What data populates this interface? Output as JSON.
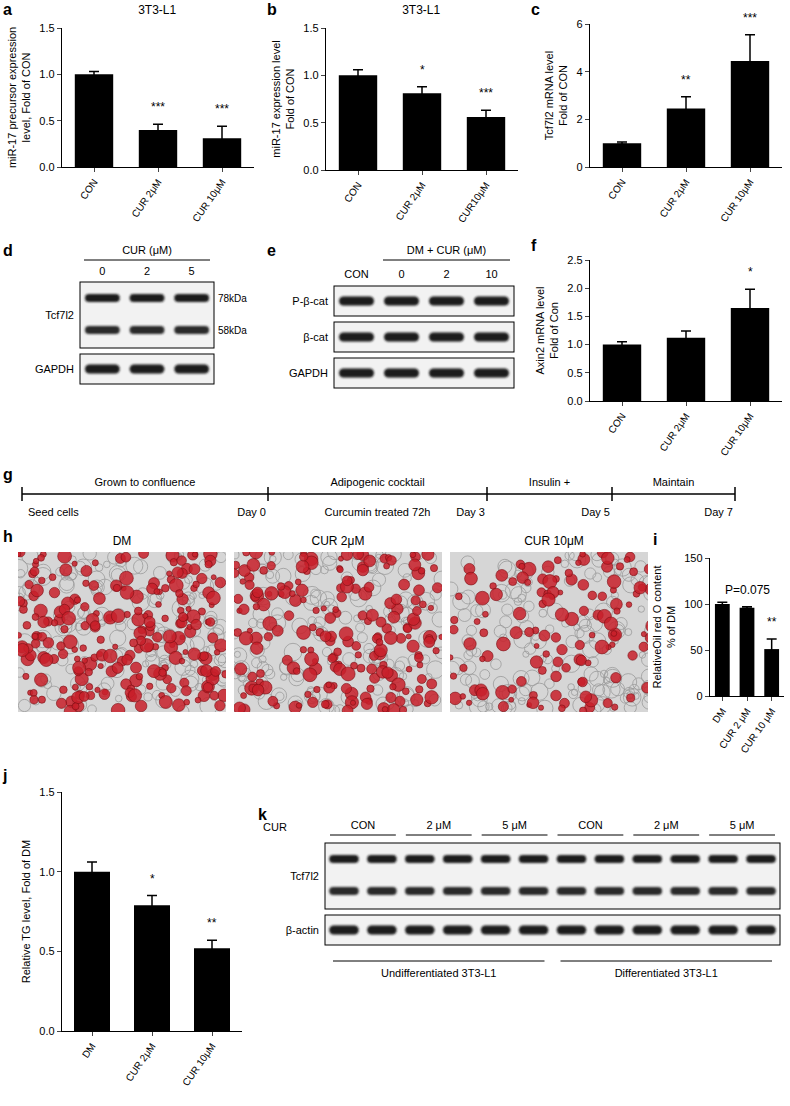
{
  "chart_data": [
    {
      "panel": "a",
      "type": "bar",
      "title": "3T3-L1",
      "y_label": [
        "miR-17 precursor expression",
        "level, Fold of CON"
      ],
      "categories": [
        "CON",
        "CUR 2μM",
        "CUR 10μM"
      ],
      "values": [
        1.0,
        0.4,
        0.31
      ],
      "errors": [
        0.03,
        0.06,
        0.13
      ],
      "color": "#000000",
      "ylim": [
        0,
        1.5
      ],
      "yticks": [
        {
          "value": 0,
          "label": "0.0"
        },
        0.5,
        {
          "value": 1,
          "label": "1.0"
        },
        1.5
      ],
      "annotations": [
        {
          "category": "CUR 2μM",
          "text": "***"
        },
        {
          "category": "CUR 10μM",
          "text": "***"
        }
      ]
    },
    {
      "panel": "b",
      "type": "bar",
      "title": "3T3-L1",
      "y_label": [
        "miR-17 expression level",
        "Fold of CON"
      ],
      "categories": [
        "CON",
        "CUR 2μM",
        "CUR10μM"
      ],
      "values": [
        1.0,
        0.81,
        0.56
      ],
      "errors": [
        0.06,
        0.07,
        0.07
      ],
      "color": "#000000",
      "ylim": [
        0,
        1.5
      ],
      "yticks": [
        {
          "value": 0,
          "label": "0.0"
        },
        0.5,
        {
          "value": 1,
          "label": "1.0"
        },
        1.5
      ],
      "annotations": [
        {
          "category": "CUR 2μM",
          "text": "*"
        },
        {
          "category": "CUR10μM",
          "text": "***"
        }
      ]
    },
    {
      "panel": "c",
      "type": "bar",
      "y_label": [
        "Tcf7l2 mRNA level",
        "Fold of CON"
      ],
      "categories": [
        "CON",
        "CUR 2μM",
        "CUR 10μM"
      ],
      "values": [
        1.0,
        2.45,
        4.45
      ],
      "errors": [
        0.05,
        0.5,
        1.1
      ],
      "color": "#000000",
      "ylim": [
        0,
        6
      ],
      "yticks": [
        0,
        2,
        4,
        6
      ],
      "annotations": [
        {
          "category": "CUR 2μM",
          "text": "**"
        },
        {
          "category": "CUR 10μM",
          "text": "***"
        }
      ]
    },
    {
      "panel": "f",
      "type": "bar",
      "y_label": [
        "Axin2 mRNA level",
        "Fold of Con"
      ],
      "categories": [
        "CON",
        "CUR 2μM",
        "CUR 10μM"
      ],
      "values": [
        1.0,
        1.12,
        1.65
      ],
      "errors": [
        0.05,
        0.12,
        0.33
      ],
      "color": "#000000",
      "ylim": [
        0,
        2.5
      ],
      "yticks": [
        {
          "value": 0,
          "label": "0.0"
        },
        0.5,
        {
          "value": 1,
          "label": "1.0"
        },
        1.5,
        {
          "value": 2,
          "label": "2.0"
        },
        2.5
      ],
      "annotations": [
        {
          "category": "CUR 10μM",
          "text": "*"
        }
      ]
    },
    {
      "panel": "i",
      "type": "bar",
      "y_label": [
        "RelativeOil red O content",
        "% of DM"
      ],
      "categories": [
        "DM",
        "CUR 2 μM",
        "CUR 10 μM"
      ],
      "values": [
        100,
        96,
        51
      ],
      "errors": [
        2,
        1,
        11
      ],
      "color": "#000000",
      "ylim": [
        0,
        150
      ],
      "yticks": [
        0,
        50,
        100,
        150
      ],
      "annotations": [
        {
          "category": "CUR 2 μM",
          "text": "P=0.075"
        },
        {
          "category": "CUR 10 μM",
          "text": "**"
        }
      ]
    },
    {
      "panel": "j",
      "type": "bar",
      "y_label": [
        "Relative TG level, Fold of DM"
      ],
      "categories": [
        "DM",
        "CUR 2μM",
        "CUR 10μM"
      ],
      "values": [
        1.0,
        0.79,
        0.52
      ],
      "errors": [
        0.06,
        0.06,
        0.05
      ],
      "color": "#000000",
      "ylim": [
        0,
        1.5
      ],
      "yticks": [
        {
          "value": 0,
          "label": "0.0"
        },
        0.5,
        {
          "value": 1,
          "label": "1.0"
        },
        1.5
      ],
      "annotations": [
        {
          "category": "CUR 2μM",
          "text": "*"
        },
        {
          "category": "CUR 10μM",
          "text": "**"
        }
      ]
    }
  ],
  "blots": [
    {
      "panel": "d",
      "header": "CUR (μM)",
      "lanes": [
        "0",
        "2",
        "5"
      ],
      "rows": [
        {
          "label": "Tcf7l2",
          "bands": [
            "78kDa",
            "58kDa"
          ]
        },
        {
          "label": "GAPDH"
        }
      ]
    },
    {
      "panel": "e",
      "first_lane": "CON",
      "group_header": "DM + CUR (μM)",
      "group_lanes": [
        "0",
        "2",
        "10"
      ],
      "rows": [
        {
          "label": "P-β-cat"
        },
        {
          "label": "β-cat"
        },
        {
          "label": "GAPDH"
        }
      ]
    },
    {
      "panel": "k",
      "header": "CUR",
      "lane_groups": [
        "CON",
        "2 μM",
        "5 μM",
        "CON",
        "2 μM",
        "5 μM"
      ],
      "rows": [
        {
          "label": "Tcf7l2"
        },
        {
          "label": "β-actin"
        }
      ],
      "sections": [
        "Undifferentiated 3T3-L1",
        "Differentiated 3T3-L1"
      ]
    }
  ],
  "timeline": {
    "panel": "g",
    "segments": [
      "Grown to confluence",
      "Adipogenic cocktail",
      "Insulin +",
      "Maintain"
    ],
    "start_label": "Seed cells",
    "day_labels": [
      "Day 0",
      "Day 3",
      "Day 5",
      "Day 7"
    ],
    "note": "Curcumin treated 72h"
  },
  "micrographs": {
    "panel": "h",
    "labels": [
      "DM",
      "CUR 2μM",
      "CUR 10μM"
    ]
  }
}
